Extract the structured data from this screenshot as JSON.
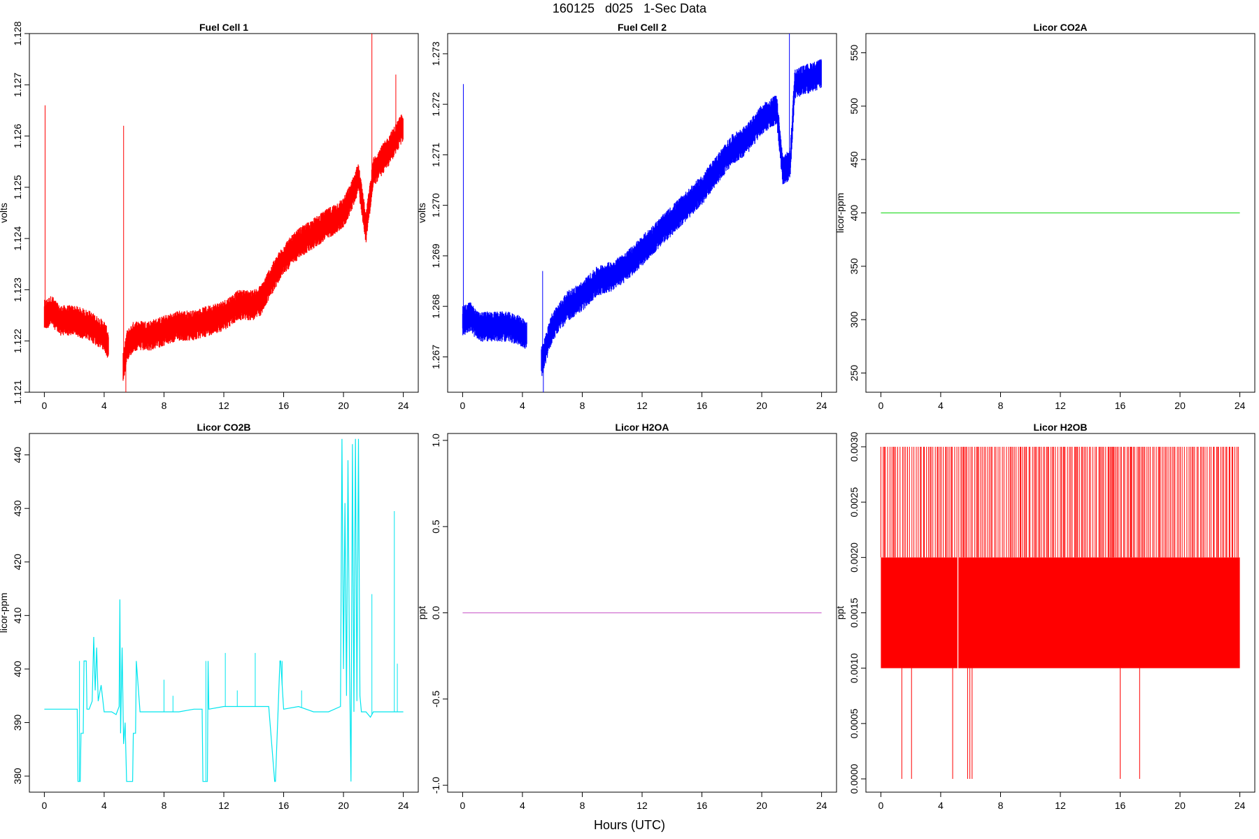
{
  "figure": {
    "title": "160125   d025   1-Sec Data",
    "xcaption": "Hours (UTC)"
  },
  "chart_data": [
    {
      "type": "line",
      "title": "Fuel Cell 1",
      "ylabel": "volts",
      "xlabel": "",
      "color": "#ff0000",
      "xlim": [
        -1,
        25
      ],
      "ylim": [
        1.121,
        1.128
      ],
      "xticks": [
        0,
        4,
        8,
        12,
        16,
        20,
        24
      ],
      "yticks": [
        1.121,
        1.122,
        1.123,
        1.124,
        1.125,
        1.126,
        1.127,
        1.128
      ],
      "ytick_labels": [
        "1.121",
        "1.122",
        "1.123",
        "1.124",
        "1.125",
        "1.126",
        "1.127",
        "1.128"
      ],
      "series": [
        {
          "x": [
            0,
            0.5,
            1,
            2,
            3,
            4,
            4.3,
            5.3,
            5.5,
            6,
            7,
            8,
            9,
            10,
            11,
            12,
            13,
            14,
            14.5,
            15,
            16,
            17,
            18,
            19,
            20,
            20.5,
            21,
            21.5,
            22,
            23,
            24
          ],
          "y": [
            1.1225,
            1.1226,
            1.1224,
            1.1224,
            1.1223,
            1.1221,
            1.1219,
            1.1215,
            1.1219,
            1.1221,
            1.1221,
            1.1222,
            1.1223,
            1.1223,
            1.1224,
            1.1225,
            1.1227,
            1.1227,
            1.1228,
            1.1231,
            1.1236,
            1.1239,
            1.1241,
            1.1243,
            1.1245,
            1.1248,
            1.1252,
            1.1242,
            1.1253,
            1.1257,
            1.1262
          ],
          "band": 0.0003,
          "spikes": [
            {
              "x": 0.05,
              "y": 1.1266
            },
            {
              "x": 5.3,
              "y": 1.1262
            },
            {
              "x": 5.45,
              "y": 1.121
            },
            {
              "x": 21.9,
              "y": 1.128
            },
            {
              "x": 23.5,
              "y": 1.1272
            }
          ]
        }
      ]
    },
    {
      "type": "line",
      "title": "Fuel Cell 2",
      "ylabel": "volts",
      "xlabel": "",
      "color": "#0000ff",
      "xlim": [
        -1,
        25
      ],
      "ylim": [
        1.2663,
        1.2734
      ],
      "xticks": [
        0,
        4,
        8,
        12,
        16,
        20,
        24
      ],
      "yticks": [
        1.267,
        1.268,
        1.269,
        1.27,
        1.271,
        1.272,
        1.273
      ],
      "ytick_labels": [
        "1.267",
        "1.268",
        "1.269",
        "1.270",
        "1.271",
        "1.272",
        "1.273"
      ],
      "series": [
        {
          "x": [
            0,
            0.5,
            1,
            2,
            3,
            4,
            4.3,
            5.3,
            5.6,
            6,
            7,
            8,
            9,
            10,
            11,
            12,
            13,
            14,
            15,
            16,
            17,
            18,
            19,
            20,
            21,
            21.4,
            21.9,
            22.2,
            23,
            24
          ],
          "y": [
            1.2677,
            1.2678,
            1.2676,
            1.2676,
            1.2676,
            1.2675,
            1.2674,
            1.2669,
            1.2672,
            1.2676,
            1.268,
            1.2682,
            1.2685,
            1.2686,
            1.2688,
            1.2691,
            1.2694,
            1.2697,
            1.27,
            1.2703,
            1.2707,
            1.2711,
            1.2713,
            1.2717,
            1.2719,
            1.2707,
            1.2708,
            1.2724,
            1.2725,
            1.2726
          ],
          "band": 0.0003,
          "spikes": [
            {
              "x": 0.05,
              "y": 1.2724
            },
            {
              "x": 5.4,
              "y": 1.2663
            },
            {
              "x": 5.35,
              "y": 1.2687
            },
            {
              "x": 21.85,
              "y": 1.2734
            }
          ]
        }
      ]
    },
    {
      "type": "line",
      "title": "Licor CO2A",
      "ylabel": "licor-ppm",
      "xlabel": "",
      "color": "#33dd33",
      "xlim": [
        -1,
        25
      ],
      "ylim": [
        232,
        568
      ],
      "xticks": [
        0,
        4,
        8,
        12,
        16,
        20,
        24
      ],
      "yticks": [
        250,
        300,
        350,
        400,
        450,
        500,
        550
      ],
      "ytick_labels": [
        "250",
        "300",
        "350",
        "400",
        "450",
        "500",
        "550"
      ],
      "series": [
        {
          "x": [
            0,
            24
          ],
          "y": [
            400,
            400
          ],
          "band": 0,
          "spikes": []
        }
      ]
    },
    {
      "type": "line",
      "title": "Licor CO2B",
      "ylabel": "licor-ppm",
      "xlabel": "",
      "color": "#00e5ee",
      "xlim": [
        -1,
        25
      ],
      "ylim": [
        377,
        444
      ],
      "xticks": [
        0,
        4,
        8,
        12,
        16,
        20,
        24
      ],
      "yticks": [
        380,
        390,
        400,
        410,
        420,
        430,
        440
      ],
      "ytick_labels": [
        "380",
        "390",
        "400",
        "410",
        "420",
        "430",
        "440"
      ],
      "series": [
        {
          "x": [
            0,
            2.2,
            2.25,
            2.4,
            2.45,
            2.6,
            2.65,
            2.8,
            2.85,
            3,
            3.2,
            3.3,
            3.4,
            3.5,
            3.6,
            3.8,
            4,
            4.5,
            4.8,
            5,
            5.05,
            5.1,
            5.2,
            5.3,
            5.4,
            5.5,
            5.55,
            5.9,
            5.95,
            6.1,
            6.15,
            6.4,
            7,
            8,
            8.5,
            9,
            10,
            10.55,
            10.6,
            10.9,
            10.95,
            11,
            12,
            13,
            14,
            15,
            15.4,
            15.45,
            15.75,
            15.8,
            16,
            17,
            18,
            18.5,
            19,
            19.8,
            19.9,
            20,
            20.1,
            20.2,
            20.3,
            20.4,
            20.5,
            20.6,
            20.7,
            20.8,
            20.9,
            21,
            21.1,
            21.2,
            21.5,
            21.8,
            22,
            23,
            24
          ],
          "y": [
            392.5,
            392.5,
            379,
            379,
            388,
            388,
            401.5,
            401.5,
            392.5,
            392.5,
            394,
            406,
            396,
            404,
            394,
            397,
            392,
            392,
            391.5,
            393,
            413,
            388,
            404,
            386,
            390,
            379,
            379,
            379,
            388,
            388,
            401.5,
            392,
            392,
            392,
            392,
            392,
            392.5,
            392.5,
            379,
            379,
            401.5,
            392.5,
            393,
            393,
            393,
            393,
            379,
            379,
            401.5,
            401.5,
            392.5,
            393,
            392,
            392,
            392,
            393,
            443,
            400,
            431,
            395,
            439,
            402,
            379,
            442,
            392,
            443,
            394,
            443,
            395,
            392,
            392,
            391,
            392,
            392,
            392
          ],
          "band": 0,
          "spikes": [
            {
              "x": 2.35,
              "y": 401.5
            },
            {
              "x": 8.0,
              "y": 398
            },
            {
              "x": 8.6,
              "y": 395
            },
            {
              "x": 10.8,
              "y": 401.5
            },
            {
              "x": 12.1,
              "y": 403
            },
            {
              "x": 12.9,
              "y": 396
            },
            {
              "x": 14.1,
              "y": 403
            },
            {
              "x": 15.9,
              "y": 401.5
            },
            {
              "x": 17.2,
              "y": 396
            },
            {
              "x": 21.9,
              "y": 414
            },
            {
              "x": 23.4,
              "y": 429.5
            },
            {
              "x": 23.6,
              "y": 401
            }
          ]
        }
      ]
    },
    {
      "type": "line",
      "title": "Licor H2OA",
      "ylabel": "ppt",
      "xlabel": "",
      "color": "#d070d0",
      "xlim": [
        -1,
        25
      ],
      "ylim": [
        -1.04,
        1.04
      ],
      "xticks": [
        0,
        4,
        8,
        12,
        16,
        20,
        24
      ],
      "yticks": [
        -1.0,
        -0.5,
        0.0,
        0.5,
        1.0
      ],
      "ytick_labels": [
        "-1.0",
        "-0.5",
        "0.0",
        "0.5",
        "1.0"
      ],
      "series": [
        {
          "x": [
            0,
            24
          ],
          "y": [
            0,
            0
          ],
          "band": 0,
          "spikes": []
        }
      ]
    },
    {
      "type": "line",
      "title": "Licor H2OB",
      "ylabel": "ppt",
      "xlabel": "",
      "color": "#ff0000",
      "xlim": [
        -1,
        25
      ],
      "ylim": [
        -0.00012,
        0.00312
      ],
      "xticks": [
        0,
        4,
        8,
        12,
        16,
        20,
        24
      ],
      "yticks": [
        0.0,
        0.0005,
        0.001,
        0.0015,
        0.002,
        0.0025,
        0.003
      ],
      "ytick_labels": [
        "0.0000",
        "0.0005",
        "0.0010",
        "0.0015",
        "0.0020",
        "0.0025",
        "0.0030"
      ],
      "series": [
        {
          "x": [
            0,
            24
          ],
          "y": [
            0.001,
            0.002
          ],
          "band": 0,
          "fill": true,
          "gap_x": 5.15,
          "spikes_up_density": 0.003,
          "spikes_down": [
            1.4,
            2.05,
            4.8,
            5.8,
            5.95,
            6.1,
            16.0,
            17.3
          ]
        }
      ]
    }
  ]
}
